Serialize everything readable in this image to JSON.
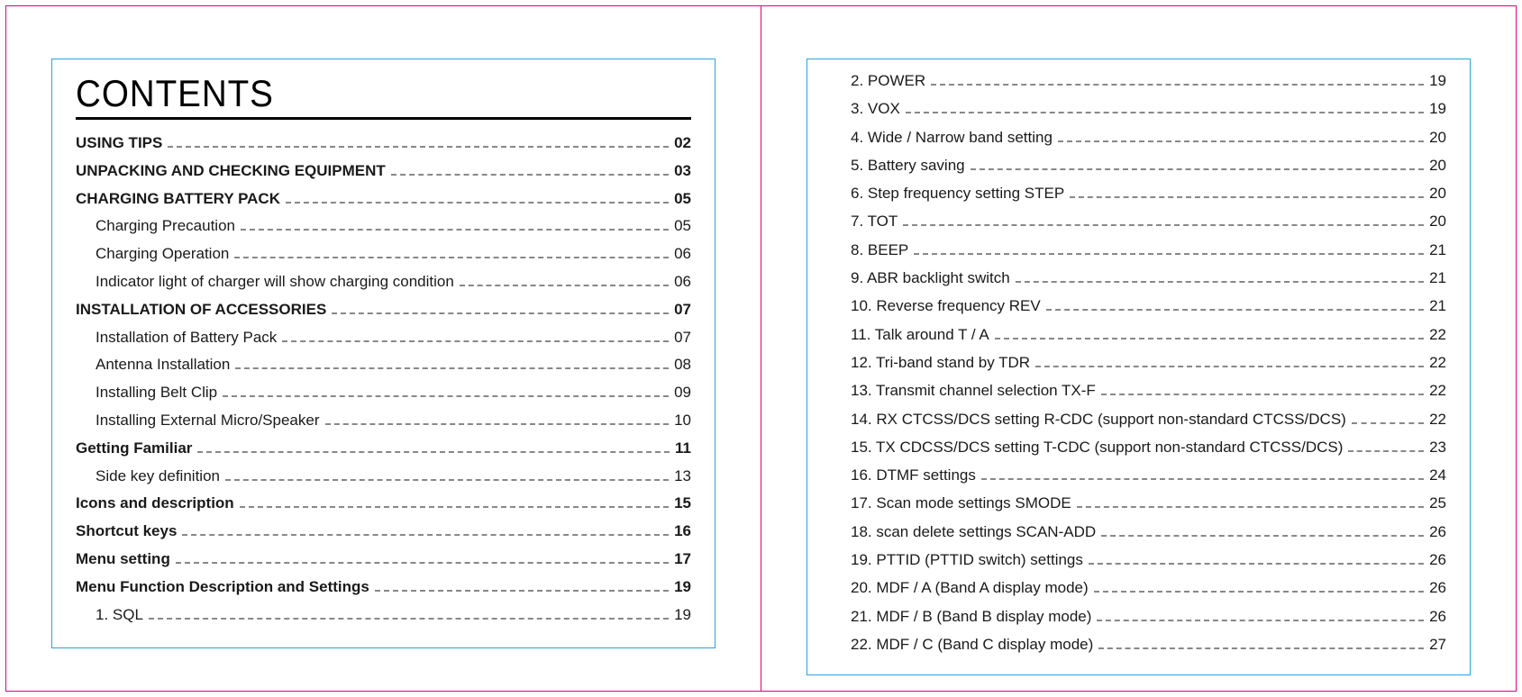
{
  "heading": "CONTENTS",
  "colors": {
    "outer_border": "#e6007e",
    "box_border": "#2aa3e0",
    "text": "#1a1a1a",
    "leader": "#888888",
    "heading_color": "#000000",
    "background": "#ffffff"
  },
  "typography": {
    "heading_font": "Impact",
    "body_font": "Arial",
    "heading_size_pt": 32,
    "section_size_pt": 13,
    "sub_size_pt": 13
  },
  "left_entries": [
    {
      "type": "section",
      "label": "USING TIPS",
      "page": "02"
    },
    {
      "type": "section",
      "label": "UNPACKING AND CHECKING EQUIPMENT",
      "page": "03"
    },
    {
      "type": "section",
      "label": "CHARGING BATTERY PACK",
      "page": "05"
    },
    {
      "type": "sub",
      "label": "Charging Precaution",
      "page": "05"
    },
    {
      "type": "sub",
      "label": "Charging Operation",
      "page": "06"
    },
    {
      "type": "sub",
      "label": "Indicator light of charger will show charging condition",
      "page": "06"
    },
    {
      "type": "section",
      "label": "INSTALLATION OF ACCESSORIES",
      "page": "07"
    },
    {
      "type": "sub",
      "label": "Installation of Battery Pack",
      "page": "07"
    },
    {
      "type": "sub",
      "label": "Antenna Installation",
      "page": "08"
    },
    {
      "type": "sub",
      "label": "Installing Belt Clip",
      "page": "09"
    },
    {
      "type": "sub",
      "label": "Installing External Micro/Speaker",
      "page": "10"
    },
    {
      "type": "section",
      "label": "Getting Familiar",
      "page": "11"
    },
    {
      "type": "sub",
      "label": "Side key definition",
      "page": "13"
    },
    {
      "type": "section",
      "label": "Icons and description",
      "page": "15"
    },
    {
      "type": "section",
      "label": "Shortcut keys",
      "page": "16"
    },
    {
      "type": "section",
      "label": "Menu setting",
      "page": "17"
    },
    {
      "type": "section",
      "label": "Menu Function Description and Settings",
      "page": "19"
    },
    {
      "type": "sub",
      "label": "1. SQL",
      "page": "19"
    }
  ],
  "right_entries": [
    {
      "type": "sub",
      "label": "2. POWER",
      "page": "19"
    },
    {
      "type": "sub",
      "label": "3. VOX",
      "page": "19"
    },
    {
      "type": "sub",
      "label": "4. Wide / Narrow band setting",
      "page": "20"
    },
    {
      "type": "sub",
      "label": "5. Battery saving",
      "page": "20"
    },
    {
      "type": "sub",
      "label": "6. Step frequency setting STEP",
      "page": "20"
    },
    {
      "type": "sub",
      "label": "7. TOT",
      "page": "20"
    },
    {
      "type": "sub",
      "label": "8. BEEP",
      "page": "21"
    },
    {
      "type": "sub",
      "label": "9. ABR backlight switch",
      "page": "21"
    },
    {
      "type": "sub",
      "label": "10. Reverse frequency REV",
      "page": "21"
    },
    {
      "type": "sub",
      "label": "11. Talk around T / A",
      "page": "22"
    },
    {
      "type": "sub",
      "label": "12. Tri-band stand by TDR",
      "page": "22"
    },
    {
      "type": "sub",
      "label": "13. Transmit channel selection TX-F",
      "page": "22"
    },
    {
      "type": "sub",
      "label": "14. RX CTCSS/DCS setting R-CDC (support non-standard CTCSS/DCS)",
      "page": "22"
    },
    {
      "type": "sub",
      "label": "15. TX CDCSS/DCS setting T-CDC (support non-standard CTCSS/DCS)",
      "page": "23"
    },
    {
      "type": "sub",
      "label": "16. DTMF settings",
      "page": "24"
    },
    {
      "type": "sub",
      "label": "17. Scan mode settings SMODE",
      "page": "25"
    },
    {
      "type": "sub",
      "label": "18. scan delete settings SCAN-ADD",
      "page": "26"
    },
    {
      "type": "sub",
      "label": "19. PTTID (PTTID switch) settings",
      "page": "26"
    },
    {
      "type": "sub",
      "label": "20. MDF / A (Band A display mode)",
      "page": "26"
    },
    {
      "type": "sub",
      "label": "21. MDF / B (Band B display mode)",
      "page": "26"
    },
    {
      "type": "sub",
      "label": "22. MDF / C (Band C display mode)",
      "page": "27"
    }
  ]
}
